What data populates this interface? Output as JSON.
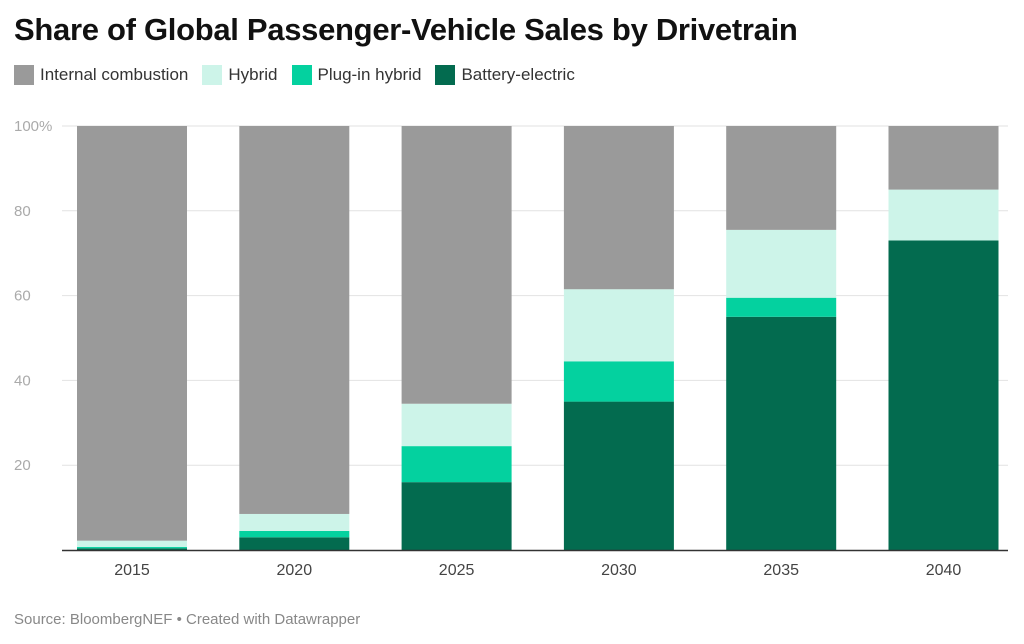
{
  "chart_data": {
    "type": "bar",
    "stacked": true,
    "title": "Share of Global Passenger-Vehicle Sales by Drivetrain",
    "categories": [
      "2015",
      "2020",
      "2025",
      "2030",
      "2035",
      "2040"
    ],
    "series": [
      {
        "name": "Battery-electric",
        "color": "#036b4f",
        "values": [
          0.4,
          3,
          16,
          35,
          55,
          73
        ]
      },
      {
        "name": "Plug-in hybrid",
        "color": "#04d19f",
        "values": [
          0.3,
          1.5,
          8.5,
          9.5,
          4.5,
          0
        ]
      },
      {
        "name": "Hybrid",
        "color": "#cdf4e9",
        "values": [
          1.5,
          4,
          10,
          17,
          16,
          12
        ]
      },
      {
        "name": "Internal combustion",
        "color": "#9a9a9a",
        "values": [
          97.8,
          91.5,
          65.5,
          38.5,
          24.5,
          15
        ]
      }
    ],
    "legend_order": [
      "Internal combustion",
      "Hybrid",
      "Plug-in hybrid",
      "Battery-electric"
    ],
    "y_ticks": [
      "100%",
      "80",
      "60",
      "40",
      "20"
    ],
    "ylim": [
      0,
      100
    ],
    "grid": true,
    "legend_position": "top-left"
  },
  "footer": {
    "source": "Source: BloombergNEF • Created with Datawrapper"
  }
}
